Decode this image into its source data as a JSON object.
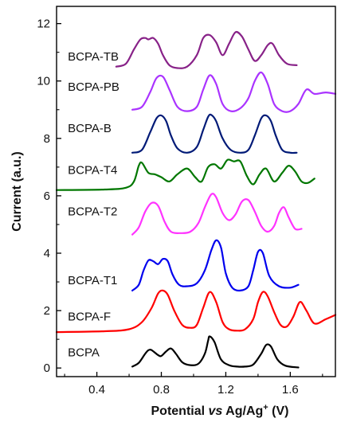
{
  "chart_data": {
    "type": "line",
    "xlabel": {
      "prefix": "Potential ",
      "italic": "vs",
      "middle": " Ag/Ag",
      "superscript": "+",
      "suffix": " (V)"
    },
    "ylabel": "Current (a.u.)",
    "xlim": [
      0.15,
      1.88
    ],
    "ylim": [
      -0.3,
      12.6
    ],
    "x_ticks": [
      0.4,
      0.8,
      1.2,
      1.6
    ],
    "x_tick_labels": [
      "0.4",
      "0.8",
      "1.2",
      "1.6"
    ],
    "y_ticks": [
      0,
      2,
      4,
      6,
      8,
      10,
      12
    ],
    "y_tick_labels": [
      "0",
      "2",
      "4",
      "6",
      "8",
      "10",
      "12"
    ],
    "grid": false,
    "legend": "labels placed beside each curve",
    "series": [
      {
        "name": "BCPA",
        "color": "#000000",
        "label_pos": [
          0.22,
          0.55
        ],
        "x": [
          0.62,
          0.66,
          0.7,
          0.72,
          0.74,
          0.78,
          0.8,
          0.83,
          0.86,
          0.89,
          0.93,
          0.98,
          1.03,
          1.07,
          1.09,
          1.1,
          1.13,
          1.17,
          1.22,
          1.27,
          1.32,
          1.37,
          1.42,
          1.45,
          1.48,
          1.52,
          1.57,
          1.65
        ],
        "y": [
          0.05,
          0.18,
          0.5,
          0.62,
          0.62,
          0.45,
          0.42,
          0.58,
          0.68,
          0.5,
          0.2,
          0.1,
          0.15,
          0.5,
          0.95,
          1.1,
          0.9,
          0.3,
          0.1,
          0.05,
          0.05,
          0.12,
          0.5,
          0.8,
          0.75,
          0.3,
          0.08,
          0.02
        ]
      },
      {
        "name": "BCPA-F",
        "color": "#ff0000",
        "label_pos": [
          0.22,
          1.8
        ],
        "x": [
          0.15,
          0.45,
          0.6,
          0.68,
          0.74,
          0.78,
          0.81,
          0.84,
          0.88,
          0.93,
          0.98,
          1.02,
          1.06,
          1.1,
          1.14,
          1.18,
          1.22,
          1.27,
          1.32,
          1.37,
          1.4,
          1.43,
          1.46,
          1.5,
          1.54,
          1.58,
          1.62,
          1.66,
          1.7,
          1.75,
          1.82,
          1.88
        ],
        "y": [
          1.25,
          1.28,
          1.35,
          1.6,
          2.1,
          2.6,
          2.7,
          2.55,
          2.0,
          1.5,
          1.4,
          1.5,
          2.1,
          2.65,
          2.3,
          1.6,
          1.35,
          1.3,
          1.35,
          1.7,
          2.3,
          2.65,
          2.5,
          1.95,
          1.5,
          1.45,
          1.8,
          2.3,
          2.0,
          1.55,
          1.7,
          1.85
        ]
      },
      {
        "name": "BCPA-T1",
        "color": "#0000ee",
        "label_pos": [
          0.22,
          3.05
        ],
        "x": [
          0.62,
          0.66,
          0.69,
          0.72,
          0.75,
          0.78,
          0.81,
          0.84,
          0.87,
          0.91,
          0.96,
          1.02,
          1.07,
          1.11,
          1.14,
          1.17,
          1.2,
          1.24,
          1.29,
          1.34,
          1.37,
          1.4,
          1.43,
          1.47,
          1.53,
          1.6,
          1.65
        ],
        "y": [
          2.7,
          2.9,
          3.4,
          3.75,
          3.72,
          3.62,
          3.8,
          3.72,
          3.25,
          2.9,
          2.85,
          2.95,
          3.4,
          4.1,
          4.45,
          4.2,
          3.3,
          2.8,
          2.7,
          2.85,
          3.4,
          4.05,
          4.0,
          3.2,
          2.85,
          2.8,
          2.9
        ]
      },
      {
        "name": "BCPA-T2",
        "color": "#ff33ff",
        "label_pos": [
          0.22,
          5.45
        ],
        "x": [
          0.62,
          0.66,
          0.7,
          0.74,
          0.78,
          0.82,
          0.86,
          0.92,
          0.98,
          1.03,
          1.07,
          1.11,
          1.14,
          1.18,
          1.22,
          1.26,
          1.3,
          1.34,
          1.38,
          1.42,
          1.46,
          1.5,
          1.53,
          1.56,
          1.59,
          1.63,
          1.67
        ],
        "y": [
          4.65,
          4.9,
          5.45,
          5.75,
          5.65,
          5.1,
          4.75,
          4.7,
          4.75,
          5.05,
          5.6,
          6.05,
          5.95,
          5.4,
          5.15,
          5.35,
          5.8,
          5.85,
          5.45,
          4.95,
          4.75,
          4.95,
          5.4,
          5.6,
          5.25,
          4.85,
          4.85
        ]
      },
      {
        "name": "BCPA-T4",
        "color": "#007700",
        "label_pos": [
          0.22,
          6.9
        ],
        "x": [
          0.15,
          0.45,
          0.58,
          0.63,
          0.66,
          0.68,
          0.72,
          0.76,
          0.8,
          0.85,
          0.9,
          0.96,
          1.01,
          1.05,
          1.09,
          1.13,
          1.17,
          1.21,
          1.25,
          1.29,
          1.33,
          1.37,
          1.41,
          1.45,
          1.5,
          1.55,
          1.59,
          1.63,
          1.67,
          1.71,
          1.75
        ],
        "y": [
          6.2,
          6.22,
          6.28,
          6.5,
          7.05,
          7.15,
          6.8,
          6.75,
          6.65,
          6.5,
          6.75,
          6.95,
          6.65,
          6.5,
          7.0,
          7.1,
          6.95,
          7.25,
          7.2,
          7.2,
          6.7,
          6.4,
          6.75,
          6.95,
          6.5,
          6.8,
          7.05,
          6.85,
          6.5,
          6.45,
          6.6
        ]
      },
      {
        "name": "BCPA-B",
        "color": "#001a77",
        "label_pos": [
          0.22,
          8.35
        ],
        "x": [
          0.62,
          0.68,
          0.73,
          0.77,
          0.8,
          0.83,
          0.86,
          0.9,
          0.96,
          1.02,
          1.06,
          1.09,
          1.11,
          1.14,
          1.18,
          1.23,
          1.29,
          1.34,
          1.38,
          1.42,
          1.45,
          1.48,
          1.51,
          1.55,
          1.6,
          1.64
        ],
        "y": [
          7.5,
          7.6,
          8.2,
          8.7,
          8.8,
          8.6,
          8.1,
          7.65,
          7.5,
          7.7,
          8.3,
          8.75,
          8.82,
          8.6,
          8.0,
          7.6,
          7.5,
          7.6,
          8.1,
          8.7,
          8.8,
          8.6,
          8.1,
          7.6,
          7.5,
          7.5
        ]
      },
      {
        "name": "BCPA-PB",
        "color": "#aa33ff",
        "label_pos": [
          0.22,
          9.8
        ],
        "x": [
          0.62,
          0.68,
          0.73,
          0.77,
          0.81,
          0.85,
          0.9,
          0.96,
          1.02,
          1.06,
          1.1,
          1.14,
          1.18,
          1.23,
          1.29,
          1.34,
          1.38,
          1.42,
          1.46,
          1.5,
          1.55,
          1.6,
          1.65,
          1.7,
          1.75,
          1.82,
          1.88
        ],
        "y": [
          9.0,
          9.1,
          9.6,
          10.1,
          10.15,
          9.7,
          9.1,
          8.95,
          9.1,
          9.7,
          10.2,
          9.9,
          9.2,
          8.95,
          9.05,
          9.4,
          10.0,
          10.3,
          9.9,
          9.2,
          8.95,
          8.95,
          9.2,
          9.7,
          9.55,
          9.6,
          9.55
        ]
      },
      {
        "name": "BCPA-TB",
        "color": "#882288",
        "label_pos": [
          0.22,
          10.85
        ],
        "x": [
          0.52,
          0.58,
          0.63,
          0.67,
          0.7,
          0.72,
          0.75,
          0.78,
          0.81,
          0.85,
          0.9,
          0.96,
          1.02,
          1.06,
          1.1,
          1.14,
          1.18,
          1.22,
          1.26,
          1.3,
          1.34,
          1.38,
          1.42,
          1.46,
          1.49,
          1.53,
          1.58,
          1.64
        ],
        "y": [
          10.5,
          10.6,
          11.1,
          11.45,
          11.5,
          11.45,
          11.5,
          11.3,
          10.9,
          10.55,
          10.45,
          10.5,
          10.9,
          11.5,
          11.6,
          11.35,
          10.9,
          11.3,
          11.7,
          11.55,
          11.1,
          10.7,
          10.9,
          11.25,
          11.3,
          10.9,
          10.6,
          10.55
        ]
      }
    ]
  }
}
